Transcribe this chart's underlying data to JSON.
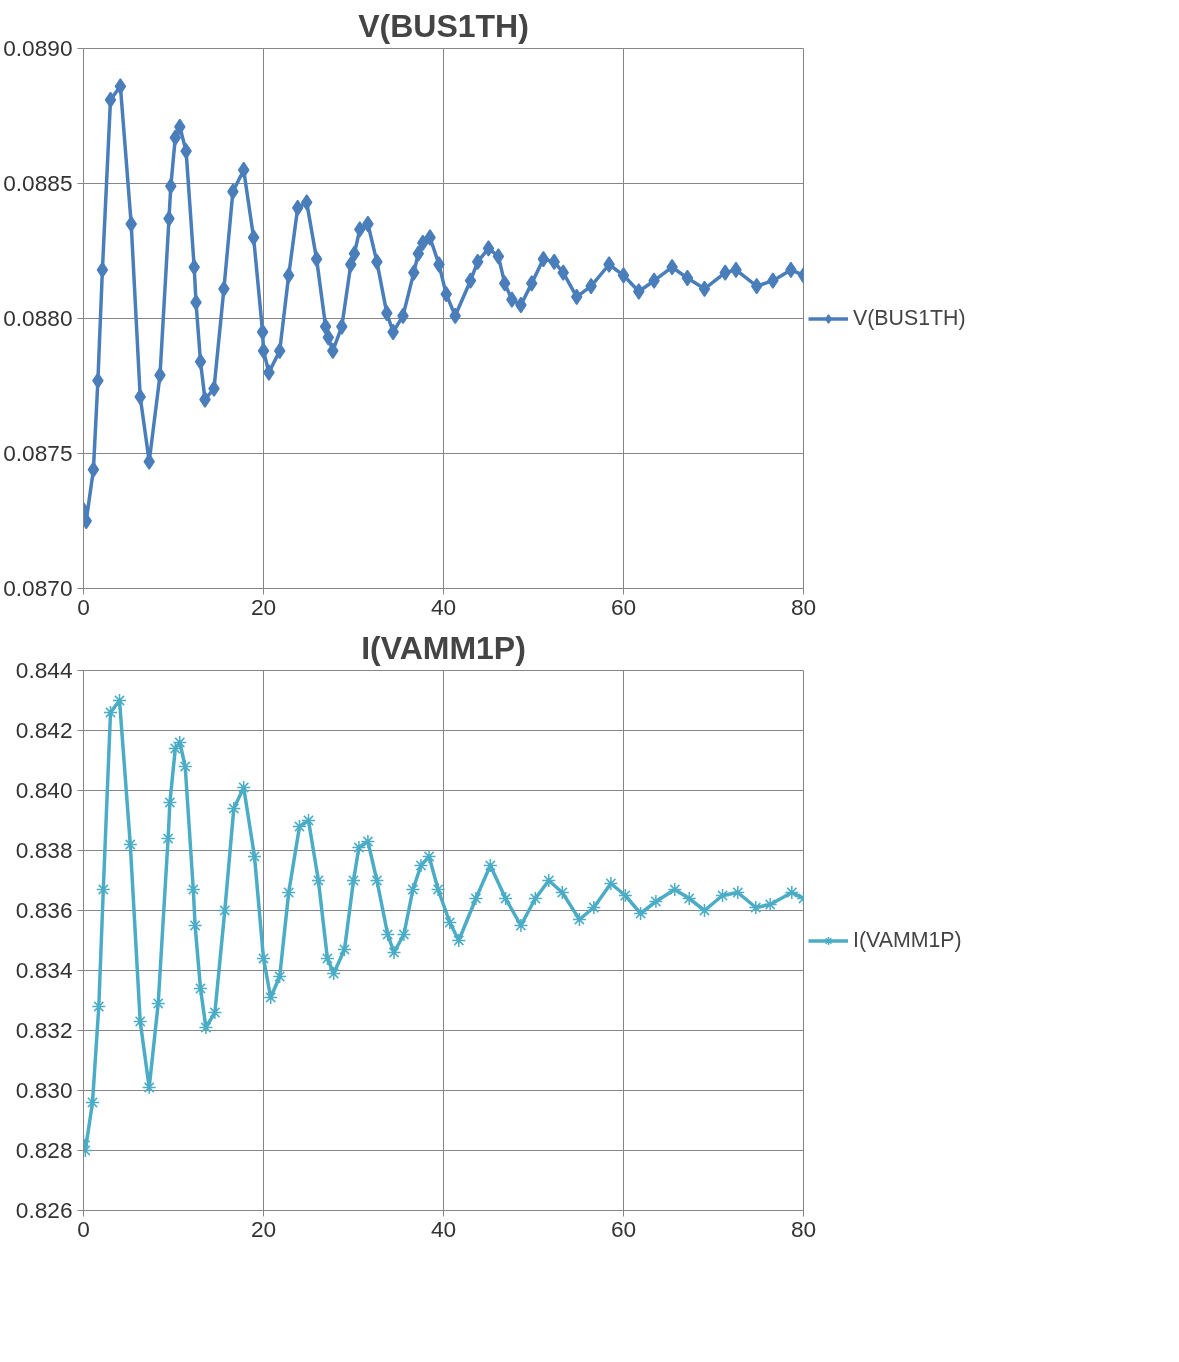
{
  "chart_data": [
    {
      "type": "line",
      "title": "V(BUS1TH)",
      "xlim": [
        0,
        80
      ],
      "xticks": [
        0,
        20,
        40,
        60,
        80
      ],
      "ylim": [
        0.087,
        0.089
      ],
      "yticks": [
        {
          "value": 0.087,
          "label": "0.0870"
        },
        {
          "value": 0.0875,
          "label": "0.0875"
        },
        {
          "value": 0.088,
          "label": "0.0880"
        },
        {
          "value": 0.0885,
          "label": "0.0885"
        },
        {
          "value": 0.089,
          "label": "0.0890"
        }
      ],
      "grid": true,
      "legend": "right",
      "marker": "diamond",
      "line_style": "solid",
      "series": [
        {
          "name": "V(BUS1TH)",
          "color": "#4a7ebb",
          "x": [
            0,
            0.3,
            1.1,
            1.6,
            2.1,
            3.0,
            4.1,
            5.3,
            6.3,
            7.3,
            8.5,
            9.5,
            9.7,
            10.2,
            10.7,
            11.4,
            12.3,
            12.5,
            13.0,
            13.5,
            14.5,
            15.6,
            16.6,
            17.8,
            18.9,
            19.9,
            20.0,
            20.6,
            21.8,
            22.8,
            23.8,
            24.8,
            25.9,
            26.9,
            27.2,
            27.7,
            28.7,
            29.7,
            30.1,
            30.7,
            31.6,
            32.6,
            33.7,
            34.4,
            35.5,
            36.7,
            37.2,
            37.7,
            38.5,
            39.5,
            40.3,
            41.3,
            43.0,
            43.8,
            45.0,
            46.1,
            46.8,
            47.6,
            48.6,
            49.8,
            51.1,
            52.3,
            53.3,
            54.8,
            56.4,
            58.4,
            60.0,
            61.7,
            63.4,
            65.4,
            67.1,
            69.0,
            71.3,
            72.5,
            74.8,
            76.6,
            78.6,
            80
          ],
          "values": [
            0.08729,
            0.08725,
            0.08744,
            0.08777,
            0.08818,
            0.08881,
            0.08886,
            0.08835,
            0.08771,
            0.08747,
            0.08779,
            0.08837,
            0.08849,
            0.08867,
            0.08871,
            0.08862,
            0.08819,
            0.08806,
            0.08784,
            0.0877,
            0.08774,
            0.08811,
            0.08847,
            0.08855,
            0.0883,
            0.08795,
            0.08788,
            0.0878,
            0.08788,
            0.08816,
            0.08841,
            0.08843,
            0.08822,
            0.08797,
            0.08793,
            0.08788,
            0.08797,
            0.0882,
            0.08824,
            0.08833,
            0.08835,
            0.08821,
            0.08802,
            0.08795,
            0.08801,
            0.08817,
            0.08824,
            0.08828,
            0.0883,
            0.0882,
            0.08809,
            0.08801,
            0.08814,
            0.08821,
            0.08826,
            0.08823,
            0.08813,
            0.08807,
            0.08805,
            0.08813,
            0.08822,
            0.08821,
            0.08817,
            0.08808,
            0.08812,
            0.0882,
            0.08816,
            0.0881,
            0.08814,
            0.08819,
            0.08815,
            0.08811,
            0.08817,
            0.08818,
            0.08812,
            0.08814,
            0.08818,
            0.08816
          ]
        }
      ]
    },
    {
      "type": "line",
      "title": "I(VAMM1P)",
      "xlim": [
        0,
        80
      ],
      "xticks": [
        0,
        20,
        40,
        60,
        80
      ],
      "ylim": [
        0.826,
        0.844
      ],
      "yticks": [
        {
          "value": 0.826,
          "label": "0.826"
        },
        {
          "value": 0.828,
          "label": "0.828"
        },
        {
          "value": 0.83,
          "label": "0.830"
        },
        {
          "value": 0.832,
          "label": "0.832"
        },
        {
          "value": 0.834,
          "label": "0.834"
        },
        {
          "value": 0.836,
          "label": "0.836"
        },
        {
          "value": 0.838,
          "label": "0.838"
        },
        {
          "value": 0.84,
          "label": "0.840"
        },
        {
          "value": 0.842,
          "label": "0.842"
        },
        {
          "value": 0.844,
          "label": "0.844"
        }
      ],
      "grid": true,
      "legend": "right",
      "marker": "cross",
      "line_style": "solid",
      "series": [
        {
          "name": "I(VAMM1P)",
          "color": "#4bacc6",
          "x": [
            0,
            0.2,
            1.0,
            1.7,
            2.2,
            3.0,
            4.0,
            5.2,
            6.3,
            7.3,
            8.3,
            9.4,
            9.6,
            10.2,
            10.7,
            11.3,
            12.2,
            12.4,
            13.0,
            13.6,
            14.6,
            15.7,
            16.7,
            17.8,
            19.0,
            20.0,
            20.8,
            21.8,
            22.8,
            24.0,
            25.0,
            26.1,
            27.1,
            27.8,
            29.0,
            30.0,
            30.6,
            31.6,
            32.6,
            33.8,
            34.5,
            35.6,
            36.6,
            37.5,
            38.4,
            39.4,
            40.7,
            41.7,
            43.6,
            45.2,
            46.9,
            48.6,
            50.2,
            51.7,
            53.2,
            55.1,
            56.7,
            58.6,
            60.2,
            61.9,
            63.6,
            65.7,
            67.3,
            69.0,
            71.0,
            72.7,
            74.7,
            76.3,
            78.7,
            80
          ],
          "values": [
            0.8283,
            0.828,
            0.8296,
            0.8328,
            0.8367,
            0.8426,
            0.843,
            0.8382,
            0.8323,
            0.8301,
            0.8329,
            0.8384,
            0.8396,
            0.8414,
            0.8416,
            0.8408,
            0.8367,
            0.8355,
            0.8334,
            0.8321,
            0.8326,
            0.836,
            0.8394,
            0.8401,
            0.8378,
            0.8344,
            0.8331,
            0.8338,
            0.8366,
            0.8388,
            0.839,
            0.837,
            0.8344,
            0.8339,
            0.8347,
            0.837,
            0.8381,
            0.8383,
            0.837,
            0.8352,
            0.8346,
            0.8352,
            0.8367,
            0.8375,
            0.8378,
            0.8367,
            0.8356,
            0.835,
            0.8364,
            0.8375,
            0.8364,
            0.8355,
            0.8364,
            0.837,
            0.8366,
            0.8357,
            0.8361,
            0.8369,
            0.8365,
            0.8359,
            0.8363,
            0.8367,
            0.8364,
            0.836,
            0.8365,
            0.8366,
            0.8361,
            0.8362,
            0.8366,
            0.8364
          ]
        }
      ]
    }
  ]
}
